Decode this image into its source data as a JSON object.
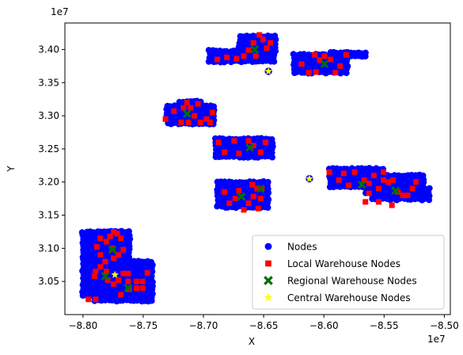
{
  "chart_data": {
    "type": "scatter",
    "xlabel": "X",
    "ylabel": "Y",
    "x_offset_text": "1e7",
    "y_offset_text": "1e7",
    "x_scale_factor": 10000000,
    "y_scale_factor": 10000000,
    "xlim": [
      -8.815,
      -8.495
    ],
    "ylim": [
      3.0,
      3.44
    ],
    "x_ticks": [
      -8.8,
      -8.75,
      -8.7,
      -8.65,
      -8.6,
      -8.55,
      -8.5
    ],
    "x_tick_labels": [
      "−8.80",
      "−8.75",
      "−8.70",
      "−8.65",
      "−8.60",
      "−8.55",
      "−8.50"
    ],
    "y_ticks": [
      3.05,
      3.1,
      3.15,
      3.2,
      3.25,
      3.3,
      3.35,
      3.4
    ],
    "y_tick_labels": [
      "3.05",
      "3.10",
      "3.15",
      "3.20",
      "3.25",
      "3.30",
      "3.35",
      "3.40"
    ],
    "grid": false,
    "legend_position": "lower-right",
    "node_clusters": [
      {
        "x_range": [
          -8.8,
          -8.76
        ],
        "y_range": [
          3.025,
          3.125
        ]
      },
      {
        "x_range": [
          -8.79,
          -8.74
        ],
        "y_range": [
          3.02,
          3.08
        ]
      },
      {
        "x_range": [
          -8.782,
          -8.765
        ],
        "y_range": [
          3.09,
          3.125
        ]
      },
      {
        "x_range": [
          -8.73,
          -8.69
        ],
        "y_range": [
          3.285,
          3.315
        ]
      },
      {
        "x_range": [
          -8.72,
          -8.7
        ],
        "y_range": [
          3.305,
          3.322
        ]
      },
      {
        "x_range": [
          -8.69,
          -8.64
        ],
        "y_range": [
          3.235,
          3.265
        ]
      },
      {
        "x_range": [
          -8.688,
          -8.645
        ],
        "y_range": [
          3.16,
          3.2
        ]
      },
      {
        "x_range": [
          -8.695,
          -8.64
        ],
        "y_range": [
          3.378,
          3.398
        ]
      },
      {
        "x_range": [
          -8.67,
          -8.64
        ],
        "y_range": [
          3.398,
          3.42
        ]
      },
      {
        "x_range": [
          -8.625,
          -8.58
        ],
        "y_range": [
          3.36,
          3.392
        ]
      },
      {
        "x_range": [
          -8.595,
          -8.565
        ],
        "y_range": [
          3.385,
          3.395
        ]
      },
      {
        "x_range": [
          -8.595,
          -8.55
        ],
        "y_range": [
          3.19,
          3.22
        ]
      },
      {
        "x_range": [
          -8.565,
          -8.515
        ],
        "y_range": [
          3.18,
          3.21
        ]
      },
      {
        "x_range": [
          -8.56,
          -8.51
        ],
        "y_range": [
          3.17,
          3.19
        ]
      }
    ],
    "series": [
      {
        "name": "Nodes",
        "marker": "circle",
        "color": "#0000ff",
        "points": [
          [
            -8.646,
            3.367
          ],
          [
            -8.612,
            3.205
          ]
        ]
      },
      {
        "name": "Local Warehouse Nodes",
        "marker": "square",
        "color": "#ff0000",
        "points": [
          [
            -8.7955,
            3.023
          ],
          [
            -8.7895,
            3.023
          ],
          [
            -8.7905,
            3.058
          ],
          [
            -8.7895,
            3.065
          ],
          [
            -8.7855,
            3.072
          ],
          [
            -8.7815,
            3.08
          ],
          [
            -8.7855,
            3.09
          ],
          [
            -8.7885,
            3.102
          ],
          [
            -8.7855,
            3.115
          ],
          [
            -8.7805,
            3.11
          ],
          [
            -8.7775,
            3.118
          ],
          [
            -8.7745,
            3.125
          ],
          [
            -8.7715,
            3.122
          ],
          [
            -8.7685,
            3.115
          ],
          [
            -8.7755,
            3.1
          ],
          [
            -8.7705,
            3.09
          ],
          [
            -8.7665,
            3.098
          ],
          [
            -8.7745,
            3.085
          ],
          [
            -8.7805,
            3.065
          ],
          [
            -8.7795,
            3.052
          ],
          [
            -8.7745,
            3.046
          ],
          [
            -8.7705,
            3.052
          ],
          [
            -8.7665,
            3.062
          ],
          [
            -8.7625,
            3.062
          ],
          [
            -8.7625,
            3.05
          ],
          [
            -8.7615,
            3.038
          ],
          [
            -8.7555,
            3.04
          ],
          [
            -8.7505,
            3.05
          ],
          [
            -8.7465,
            3.063
          ],
          [
            -8.7505,
            3.04
          ],
          [
            -8.7555,
            3.05
          ],
          [
            -8.7685,
            3.03
          ],
          [
            -8.7315,
            3.295
          ],
          [
            -8.7245,
            3.307
          ],
          [
            -8.7185,
            3.29
          ],
          [
            -8.7165,
            3.312
          ],
          [
            -8.7135,
            3.32
          ],
          [
            -8.7105,
            3.312
          ],
          [
            -8.7075,
            3.3
          ],
          [
            -8.7045,
            3.318
          ],
          [
            -8.7025,
            3.29
          ],
          [
            -8.6975,
            3.295
          ],
          [
            -8.6925,
            3.305
          ],
          [
            -8.7125,
            3.29
          ],
          [
            -8.6945,
            3.29
          ],
          [
            -8.6875,
            3.26
          ],
          [
            -8.6825,
            3.245
          ],
          [
            -8.6745,
            3.262
          ],
          [
            -8.6705,
            3.243
          ],
          [
            -8.6625,
            3.262
          ],
          [
            -8.6585,
            3.255
          ],
          [
            -8.6525,
            3.245
          ],
          [
            -8.6485,
            3.26
          ],
          [
            -8.6825,
            3.185
          ],
          [
            -8.6785,
            3.168
          ],
          [
            -8.6705,
            3.187
          ],
          [
            -8.6665,
            3.158
          ],
          [
            -8.6625,
            3.168
          ],
          [
            -8.6585,
            3.178
          ],
          [
            -8.6555,
            3.19
          ],
          [
            -8.6515,
            3.19
          ],
          [
            -8.6525,
            3.175
          ],
          [
            -8.6545,
            3.16
          ],
          [
            -8.6595,
            3.196
          ],
          [
            -8.6735,
            3.175
          ],
          [
            -8.6885,
            3.385
          ],
          [
            -8.6805,
            3.388
          ],
          [
            -8.6725,
            3.386
          ],
          [
            -8.6665,
            3.39
          ],
          [
            -8.6625,
            3.399
          ],
          [
            -8.6585,
            3.41
          ],
          [
            -8.6535,
            3.422
          ],
          [
            -8.6505,
            3.415
          ],
          [
            -8.6475,
            3.402
          ],
          [
            -8.6445,
            3.41
          ],
          [
            -8.6565,
            3.39
          ],
          [
            -8.6185,
            3.378
          ],
          [
            -8.6125,
            3.365
          ],
          [
            -8.6065,
            3.366
          ],
          [
            -8.6035,
            3.384
          ],
          [
            -8.5995,
            3.39
          ],
          [
            -8.5945,
            3.385
          ],
          [
            -8.5905,
            3.365
          ],
          [
            -8.5865,
            3.375
          ],
          [
            -8.5815,
            3.392
          ],
          [
            -8.6075,
            3.392
          ],
          [
            -8.5955,
            3.215
          ],
          [
            -8.5875,
            3.203
          ],
          [
            -8.5835,
            3.213
          ],
          [
            -8.5795,
            3.195
          ],
          [
            -8.5745,
            3.215
          ],
          [
            -8.5665,
            3.203
          ],
          [
            -8.5625,
            3.183
          ],
          [
            -8.5625,
            3.198
          ],
          [
            -8.5585,
            3.21
          ],
          [
            -8.5545,
            3.19
          ],
          [
            -8.5505,
            3.203
          ],
          [
            -8.5465,
            3.2
          ],
          [
            -8.5425,
            3.203
          ],
          [
            -8.5385,
            3.185
          ],
          [
            -8.5345,
            3.18
          ],
          [
            -8.5305,
            3.18
          ],
          [
            -8.5265,
            3.19
          ],
          [
            -8.5235,
            3.2
          ],
          [
            -8.5655,
            3.17
          ],
          [
            -8.5545,
            3.17
          ],
          [
            -8.5435,
            3.165
          ],
          [
            -8.5505,
            3.215
          ]
        ]
      },
      {
        "name": "Regional Warehouse Nodes",
        "marker": "x",
        "color": "#007000",
        "points": [
          [
            -8.7815,
            3.058
          ],
          [
            -8.7755,
            3.098
          ],
          [
            -8.7625,
            3.04
          ],
          [
            -8.7135,
            3.303
          ],
          [
            -8.6615,
            3.252
          ],
          [
            -8.6685,
            3.178
          ],
          [
            -8.6575,
            3.4
          ],
          [
            -8.5995,
            3.378
          ],
          [
            -8.5685,
            3.196
          ],
          [
            -8.5405,
            3.187
          ],
          [
            -8.6525,
            3.19
          ]
        ]
      },
      {
        "name": "Central Warehouse Nodes",
        "marker": "star",
        "color": "#ffff00",
        "points": [
          [
            -8.7735,
            3.06
          ],
          [
            -8.646,
            3.367
          ],
          [
            -8.612,
            3.205
          ]
        ]
      }
    ]
  }
}
